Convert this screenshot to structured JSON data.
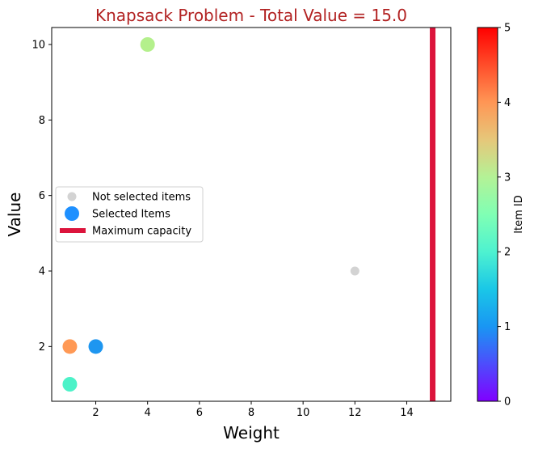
{
  "chart_data": {
    "type": "scatter",
    "title": "Knapsack Problem - Total Value = 15.0",
    "title_color": "#b22222",
    "xlabel": "Weight",
    "ylabel": "Value",
    "xlim": [
      0.3,
      15.7
    ],
    "ylim": [
      0.55,
      10.45
    ],
    "xticks": [
      2,
      4,
      6,
      8,
      10,
      12,
      14
    ],
    "yticks": [
      2,
      4,
      6,
      8,
      10
    ],
    "grid": false,
    "legend_position": "center-left",
    "legend": {
      "not_selected_label": "Not selected items",
      "selected_label": "Selected Items",
      "capacity_label": "Maximum capacity"
    },
    "not_selected_color": "#d3d3d3",
    "legend_selected_color": "#1e90ff",
    "capacity_color": "#dc143c",
    "capacity": 15,
    "not_selected": [
      {
        "x": 12,
        "y": 4
      }
    ],
    "selected": [
      {
        "id": 0,
        "x": 2,
        "y": 2,
        "color": "#1e96f0"
      },
      {
        "id": 1,
        "x": 1,
        "y": 2,
        "color": "#ff9955"
      },
      {
        "id": 2,
        "x": 1,
        "y": 1,
        "color": "#4cf2c8"
      },
      {
        "id": 3,
        "x": 4,
        "y": 10,
        "color": "#b4f08c"
      }
    ],
    "colorbar": {
      "label": "Item ID",
      "min": 0,
      "max": 5,
      "ticks": [
        0,
        1,
        2,
        3,
        4,
        5
      ],
      "colormap": "rainbow"
    }
  }
}
